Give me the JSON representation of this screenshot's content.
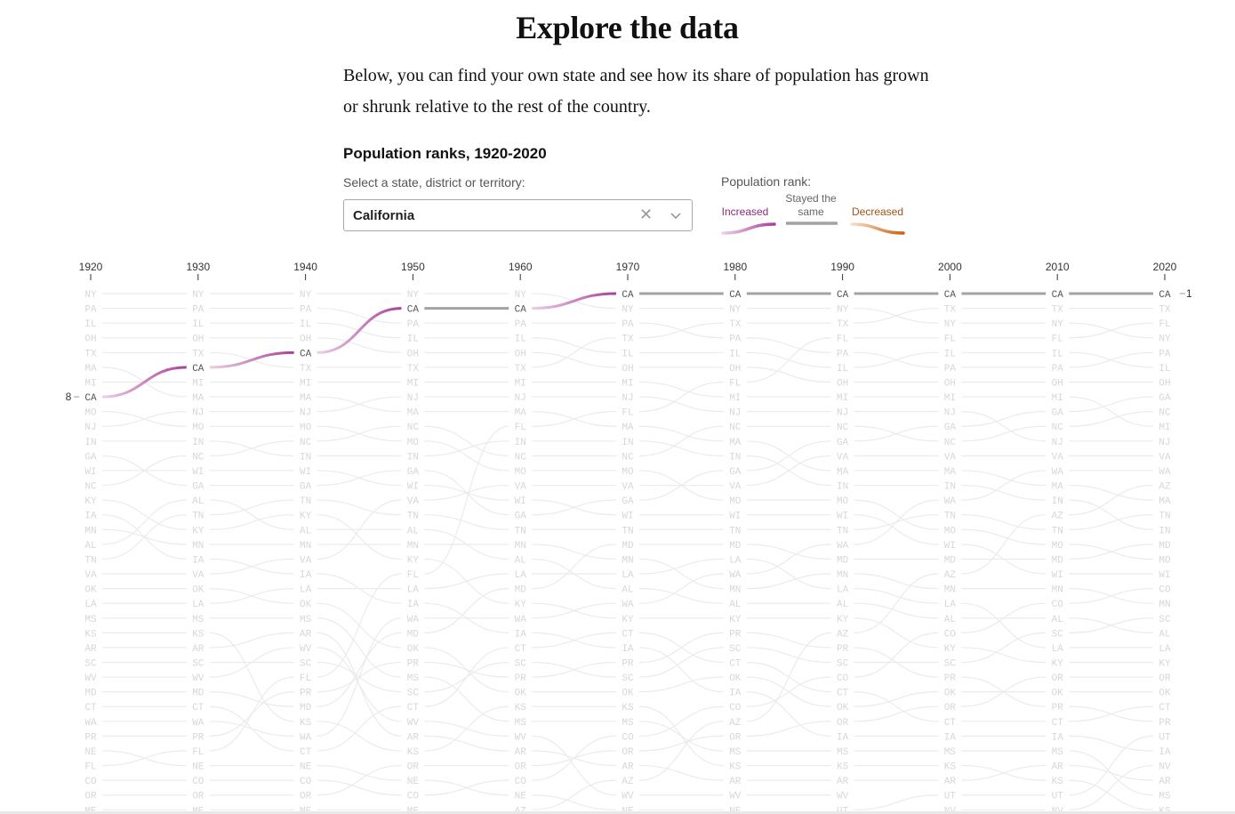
{
  "page": {
    "title": "Explore the data",
    "intro": "Below, you can find your own state and see how its share of population has grown or shrunk relative to the rest of the country."
  },
  "controls": {
    "select_label": "Select a state, district or territory:",
    "selected_value": "California",
    "clear_icon": "close-icon",
    "dropdown_icon": "chevron-down-icon"
  },
  "legend": {
    "title": "Population rank:",
    "increased": "Increased",
    "same": "Stayed the same",
    "decreased": "Decreased",
    "colors": {
      "increased": "#b0469e",
      "increased_light": "#e7c0df",
      "same": "#a3a3a3",
      "decreased": "#d2691e",
      "decreased_light": "#f4d2b0",
      "background_line": "#ebebeb",
      "label": "#d7d7d7"
    }
  },
  "chart_data": {
    "type": "bump",
    "title": "Population ranks, 1920-2020",
    "years": [
      "1920",
      "1930",
      "1940",
      "1950",
      "1960",
      "1970",
      "1980",
      "1990",
      "2000",
      "2010",
      "2020"
    ],
    "highlight": {
      "state": "CA",
      "ranks": [
        8,
        6,
        5,
        2,
        2,
        1,
        1,
        1,
        1,
        1,
        1
      ],
      "start_label": "8",
      "end_label": "1"
    },
    "ranks_by_year": [
      [
        "NY",
        "PA",
        "IL",
        "OH",
        "TX",
        "MA",
        "MI",
        "CA",
        "MO",
        "NJ",
        "IN",
        "GA",
        "WI",
        "NC",
        "KY",
        "IA",
        "MN",
        "AL",
        "TN",
        "VA",
        "OK",
        "LA",
        "MS",
        "KS",
        "AR",
        "SC",
        "WV",
        "MD",
        "CT",
        "WA",
        "PR",
        "NE",
        "FL",
        "CO",
        "OR",
        "ME"
      ],
      [
        "NY",
        "PA",
        "IL",
        "OH",
        "TX",
        "CA",
        "MI",
        "MA",
        "NJ",
        "MO",
        "IN",
        "NC",
        "WI",
        "GA",
        "AL",
        "TN",
        "KY",
        "MN",
        "IA",
        "VA",
        "OK",
        "LA",
        "MS",
        "KS",
        "AR",
        "SC",
        "WV",
        "MD",
        "CT",
        "WA",
        "PR",
        "FL",
        "NE",
        "CO",
        "OR",
        "ME"
      ],
      [
        "NY",
        "PA",
        "IL",
        "OH",
        "CA",
        "TX",
        "MI",
        "MA",
        "NJ",
        "MO",
        "NC",
        "IN",
        "WI",
        "GA",
        "TN",
        "KY",
        "AL",
        "MN",
        "VA",
        "IA",
        "LA",
        "OK",
        "MS",
        "AR",
        "WV",
        "SC",
        "FL",
        "PR",
        "MD",
        "KS",
        "WA",
        "CT",
        "NE",
        "CO",
        "OR",
        "ME"
      ],
      [
        "NY",
        "CA",
        "PA",
        "IL",
        "OH",
        "TX",
        "MI",
        "NJ",
        "MA",
        "NC",
        "MO",
        "IN",
        "GA",
        "WI",
        "VA",
        "TN",
        "AL",
        "MN",
        "KY",
        "FL",
        "LA",
        "IA",
        "WA",
        "MD",
        "OK",
        "PR",
        "MS",
        "SC",
        "CT",
        "WV",
        "AR",
        "KS",
        "OR",
        "NE",
        "CO",
        "ME"
      ],
      [
        "NY",
        "CA",
        "PA",
        "IL",
        "OH",
        "TX",
        "MI",
        "NJ",
        "MA",
        "FL",
        "IN",
        "NC",
        "MO",
        "VA",
        "WI",
        "GA",
        "TN",
        "MN",
        "AL",
        "LA",
        "MD",
        "KY",
        "WA",
        "IA",
        "CT",
        "SC",
        "PR",
        "OK",
        "KS",
        "MS",
        "WV",
        "AR",
        "OR",
        "CO",
        "NE",
        "AZ"
      ],
      [
        "CA",
        "NY",
        "PA",
        "TX",
        "IL",
        "OH",
        "MI",
        "NJ",
        "FL",
        "MA",
        "IN",
        "NC",
        "MO",
        "VA",
        "GA",
        "WI",
        "TN",
        "MD",
        "MN",
        "LA",
        "AL",
        "WA",
        "KY",
        "CT",
        "IA",
        "PR",
        "SC",
        "OK",
        "KS",
        "MS",
        "CO",
        "OR",
        "AR",
        "AZ",
        "WV",
        "NE"
      ],
      [
        "CA",
        "NY",
        "TX",
        "PA",
        "IL",
        "OH",
        "FL",
        "MI",
        "NJ",
        "NC",
        "MA",
        "IN",
        "GA",
        "VA",
        "MO",
        "WI",
        "TN",
        "MD",
        "LA",
        "WA",
        "MN",
        "AL",
        "KY",
        "PR",
        "SC",
        "CT",
        "OK",
        "IA",
        "CO",
        "AZ",
        "OR",
        "MS",
        "KS",
        "AR",
        "WV",
        "NE"
      ],
      [
        "CA",
        "NY",
        "TX",
        "FL",
        "PA",
        "IL",
        "OH",
        "MI",
        "NJ",
        "NC",
        "GA",
        "VA",
        "MA",
        "IN",
        "MO",
        "WI",
        "TN",
        "WA",
        "MD",
        "MN",
        "LA",
        "AL",
        "KY",
        "AZ",
        "PR",
        "SC",
        "CO",
        "CT",
        "OK",
        "OR",
        "IA",
        "MS",
        "KS",
        "AR",
        "WV",
        "UT"
      ],
      [
        "CA",
        "TX",
        "NY",
        "FL",
        "IL",
        "PA",
        "OH",
        "MI",
        "NJ",
        "GA",
        "NC",
        "VA",
        "MA",
        "IN",
        "WA",
        "TN",
        "MO",
        "WI",
        "MD",
        "AZ",
        "MN",
        "LA",
        "AL",
        "CO",
        "KY",
        "SC",
        "PR",
        "OK",
        "OR",
        "CT",
        "IA",
        "MS",
        "KS",
        "AR",
        "UT",
        "NV"
      ],
      [
        "CA",
        "TX",
        "NY",
        "FL",
        "IL",
        "PA",
        "OH",
        "MI",
        "GA",
        "NC",
        "NJ",
        "VA",
        "WA",
        "MA",
        "IN",
        "AZ",
        "TN",
        "MO",
        "MD",
        "WI",
        "MN",
        "CO",
        "AL",
        "SC",
        "LA",
        "KY",
        "OR",
        "OK",
        "PR",
        "CT",
        "IA",
        "MS",
        "AR",
        "KS",
        "UT",
        "NV"
      ],
      [
        "CA",
        "TX",
        "FL",
        "NY",
        "PA",
        "IL",
        "OH",
        "GA",
        "NC",
        "MI",
        "NJ",
        "VA",
        "WA",
        "AZ",
        "MA",
        "TN",
        "IN",
        "MD",
        "MO",
        "WI",
        "CO",
        "MN",
        "SC",
        "AL",
        "LA",
        "KY",
        "OR",
        "OK",
        "CT",
        "PR",
        "UT",
        "IA",
        "NV",
        "AR",
        "MS",
        "KS"
      ]
    ]
  }
}
